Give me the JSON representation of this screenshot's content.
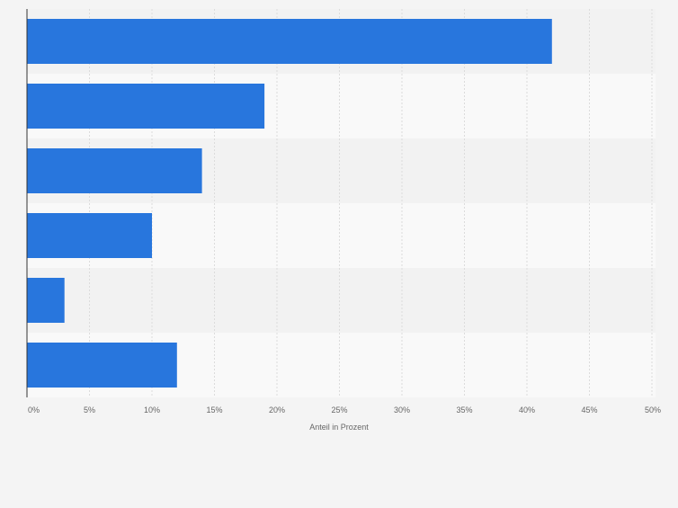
{
  "chart_data": {
    "type": "bar",
    "orientation": "horizontal",
    "title": "",
    "xlabel": "Anteil in Prozent",
    "ylabel": "",
    "categories": [
      "",
      "",
      "",
      "",
      "",
      ""
    ],
    "values": [
      42,
      19,
      14,
      10,
      3,
      12
    ],
    "xlim": [
      0,
      50
    ],
    "xticks": [
      "0%",
      "5%",
      "10%",
      "15%",
      "20%",
      "25%",
      "30%",
      "35%",
      "40%",
      "45%",
      "50%"
    ],
    "grid": true,
    "legend": "none",
    "colors": {
      "bar": "#2876dd",
      "band_dark": "#f2f2f2",
      "band_light": "#f9f9f9",
      "grid": "#dcdcdc",
      "axis": "#333333",
      "tick_text": "#666666"
    }
  }
}
